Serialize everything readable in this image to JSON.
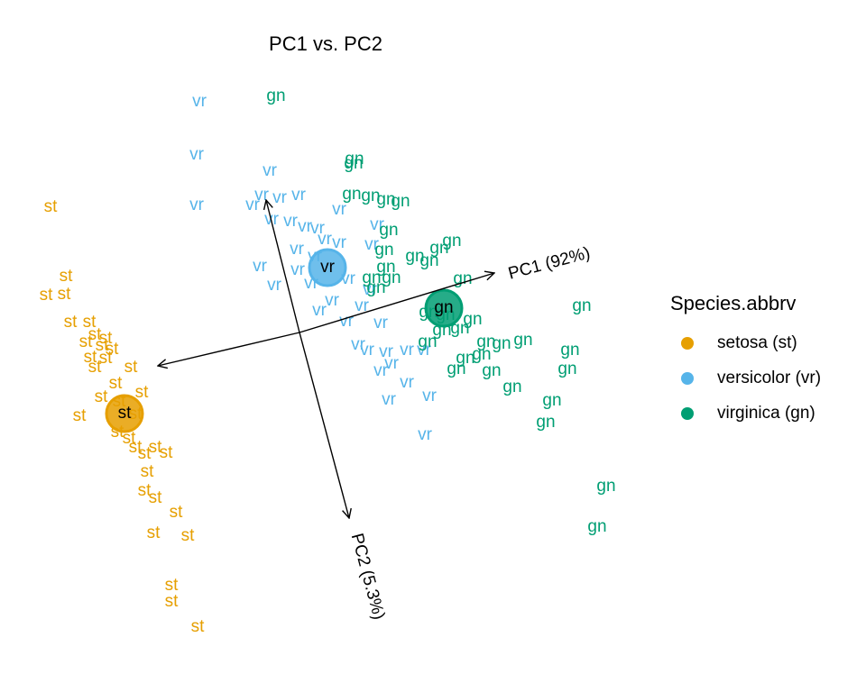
{
  "chart_data": {
    "type": "scatter",
    "title": "PC1 vs. PC2",
    "xlim": [
      -3.3,
      6.3
    ],
    "ylim": [
      -4.38,
      3.3
    ],
    "arrows": [
      {
        "label": "PC1 (92%)"
      },
      {
        "label": "PC2 (5.3%)"
      }
    ],
    "legend_title": "Species.abbrv",
    "legend": "right",
    "series": [
      {
        "name": "setosa (st)",
        "label": "st",
        "color": "#E69F00",
        "centroid": [
          -1.92,
          -1.29
        ],
        "x": [
          -2.74,
          -2.57,
          -2.79,
          -2.59,
          -2.52,
          -2.31,
          -2.25,
          -2.13,
          -2.35,
          -2.17,
          -2.06,
          -2.3,
          -2.13,
          -1.85,
          -2.25,
          -2.02,
          -1.73,
          -2.18,
          -1.98,
          -2.42,
          -1.8,
          -2,
          -1.87,
          -1.8,
          -1.58,
          -1.46,
          -1.7,
          -1.67,
          -1.7,
          -1.58,
          -1.35,
          -1.6,
          -1.22,
          -1.4,
          -1.4,
          -1.11
        ],
        "y": [
          1,
          0.23,
          0.02,
          0.03,
          -0.28,
          -0.28,
          -0.42,
          -0.46,
          -0.5,
          -0.54,
          -0.58,
          -0.67,
          -0.68,
          -0.78,
          -0.78,
          -0.96,
          -1.06,
          -1.11,
          -1.16,
          -1.32,
          -1.3,
          -1.5,
          -1.57,
          -1.67,
          -1.67,
          -1.73,
          -1.74,
          -1.94,
          -2.15,
          -2.23,
          -2.39,
          -2.62,
          -2.65,
          -3.2,
          -3.38,
          -3.66
        ]
      },
      {
        "name": "versicolor (vr)",
        "label": "vr",
        "color": "#56B4E9",
        "centroid": [
          0.33,
          0.33
        ],
        "x": [
          -1.09,
          -1.12,
          -1.12,
          -0.31,
          -0.4,
          -0.2,
          0.01,
          -0.5,
          0.46,
          -0.29,
          -0.08,
          0.08,
          0.22,
          0.88,
          0.3,
          0.46,
          0.82,
          -0.01,
          0.19,
          -0.42,
          0,
          -0.26,
          0.15,
          0.56,
          0.8,
          0.38,
          0.24,
          0.71,
          0.54,
          0.92,
          0.67,
          0.77,
          0.98,
          1.21,
          1.4,
          1.04,
          0.92,
          1.21,
          1.46,
          1.01,
          1.41
        ],
        "y": [
          2.17,
          1.58,
          1.02,
          1.4,
          1.13,
          1.1,
          1.13,
          1.02,
          0.97,
          0.86,
          0.84,
          0.78,
          0.76,
          0.8,
          0.64,
          0.6,
          0.58,
          0.53,
          0.45,
          0.34,
          0.3,
          0.13,
          0.15,
          0.2,
          0.08,
          -0.04,
          -0.15,
          -0.1,
          -0.27,
          -0.29,
          -0.53,
          -0.59,
          -0.61,
          -0.59,
          -0.59,
          -0.74,
          -0.82,
          -0.95,
          -1.1,
          -1.14,
          -1.53
        ]
      },
      {
        "name": "virginica (gn)",
        "label": "gn",
        "color": "#009E73",
        "centroid": [
          1.62,
          -0.12
        ],
        "x": [
          -0.24,
          0.63,
          0.62,
          0.6,
          0.81,
          0.98,
          1.14,
          1.01,
          0.96,
          1.3,
          1.57,
          1.71,
          1.46,
          0.98,
          0.82,
          1.04,
          0.87,
          1.83,
          1.45,
          1.64,
          1.94,
          1.8,
          1.6,
          1.44,
          2.09,
          2.26,
          2.5,
          1.86,
          1.76,
          2.04,
          2.15,
          2.38,
          3.15,
          3.02,
          2.99,
          2.82,
          2.75,
          3.42,
          3.32
        ],
        "y": [
          2.23,
          1.53,
          1.48,
          1.14,
          1.12,
          1.08,
          1.06,
          0.74,
          0.52,
          0.45,
          0.54,
          0.62,
          0.4,
          0.33,
          0.21,
          0.21,
          0.1,
          0.2,
          -0.17,
          -0.2,
          -0.25,
          -0.35,
          -0.37,
          -0.5,
          -0.5,
          -0.52,
          -0.48,
          -0.68,
          -0.8,
          -0.64,
          -0.82,
          -1,
          -0.1,
          -0.59,
          -0.8,
          -1.15,
          -1.39,
          -2.1,
          -2.55
        ]
      }
    ]
  }
}
